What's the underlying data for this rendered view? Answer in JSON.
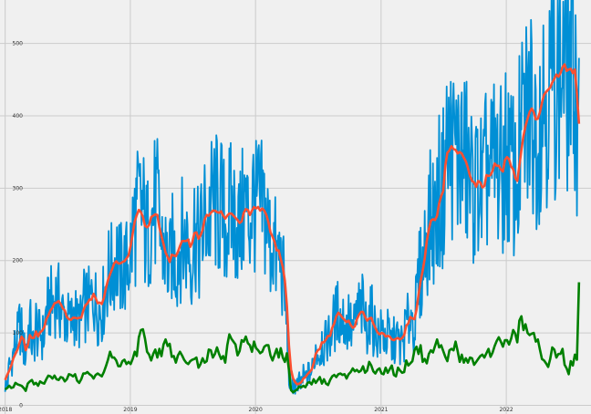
{
  "chart_data": {
    "type": "line",
    "title": "",
    "xlabel": "",
    "ylabel": "",
    "x_ticks": [
      "2018",
      "2019",
      "2020",
      "2021",
      "2022"
    ],
    "y_ticks": [
      "0",
      "100",
      "200",
      "300",
      "400",
      "500"
    ],
    "xlim": [
      "2017-12-17",
      "2022-09-05"
    ],
    "ylim": [
      -12,
      560
    ],
    "grid": true,
    "legend": "none",
    "colors": {
      "background": "#f0f0f0",
      "grid": "#cbcbcb"
    },
    "series": [
      {
        "color": "#008fd5",
        "resolution": "weekly",
        "x_start": "2018-01-01",
        "x_end": "2022-08-01",
        "values": [
          30,
          28,
          55,
          60,
          72,
          86,
          94,
          110,
          101,
          78,
          72,
          98,
          119,
          86,
          78,
          114,
          92,
          105,
          93,
          97,
          135,
          131,
          142,
          138,
          147,
          152,
          144,
          133,
          127,
          124,
          117,
          116,
          113,
          126,
          128,
          112,
          119,
          111,
          141,
          135,
          142,
          138,
          145,
          154,
          141,
          131,
          135,
          132,
          147,
          166,
          183,
          181,
          187,
          197,
          208,
          194,
          185,
          188,
          190,
          190,
          202,
          213,
          236,
          256,
          260,
          271,
          271,
          269,
          243,
          228,
          251,
          259,
          266,
          278,
          269,
          252,
          218,
          222,
          210,
          193,
          186,
          217,
          210,
          197,
          206,
          225,
          231,
          225,
          221,
          236,
          204,
          208,
          246,
          239,
          210,
          232,
          237,
          258,
          262,
          253,
          270,
          282,
          283,
          275,
          263,
          276,
          257,
          249,
          259,
          267,
          266,
          267,
          253,
          254,
          241,
          253,
          275,
          276,
          261,
          253,
          279,
          289,
          267,
          281,
          267,
          271,
          271,
          253,
          242,
          218,
          227,
          222,
          193,
          210,
          197,
          182,
          151,
          112,
          37,
          34,
          32,
          28,
          24,
          29,
          29,
          39,
          36,
          43,
          45,
          46,
          59,
          78,
          75,
          69,
          92,
          78,
          88,
          97,
          90,
          115,
          114,
          124,
          131,
          118,
          121,
          117,
          108,
          121,
          106,
          101,
          110,
          127,
          131,
          132,
          134,
          112,
          111,
          122,
          126,
          109,
          105,
          99,
          94,
          101,
          100,
          90,
          97,
          92,
          83,
          89,
          91,
          91,
          80,
          87,
          92,
          117,
          110,
          133,
          117,
          110,
          140,
          171,
          185,
          186,
          217,
          241,
          251,
          258,
          260,
          252,
          270,
          294,
          279,
          304,
          349,
          354,
          349,
          363,
          346,
          357,
          339,
          352,
          347,
          334,
          337,
          320,
          311,
          301,
          309,
          294,
          323,
          303,
          293,
          300,
          328,
          315,
          317,
          325,
          343,
          324,
          333,
          321,
          316,
          350,
          344,
          336,
          320,
          324,
          300,
          305,
          352,
          368,
          381,
          394,
          400,
          408,
          414,
          399,
          380,
          392,
          407,
          423,
          436,
          434,
          437,
          434,
          451,
          454,
          462,
          448,
          463,
          475,
          471,
          450,
          465,
          468,
          453,
          471,
          385,
          480
        ]
      },
      {
        "color": "#fc4f30",
        "resolution": "weekly",
        "x_start": "2018-01-01",
        "x_end": "2022-08-01",
        "values": [
          35,
          42,
          48,
          55,
          65,
          71,
          77,
          86,
          95,
          91,
          76,
          83,
          97,
          93,
          93,
          102,
          95,
          101,
          103,
          108,
          119,
          124,
          131,
          135,
          141,
          142,
          144,
          140,
          134,
          131,
          122,
          119,
          118,
          121,
          121,
          120,
          121,
          121,
          131,
          138,
          141,
          146,
          146,
          154,
          148,
          141,
          142,
          140,
          148,
          162,
          173,
          181,
          188,
          196,
          199,
          196,
          196,
          198,
          199,
          203,
          207,
          220,
          237,
          254,
          263,
          270,
          267,
          260,
          248,
          246,
          249,
          260,
          262,
          264,
          263,
          246,
          234,
          223,
          211,
          205,
          198,
          208,
          207,
          206,
          212,
          220,
          227,
          227,
          227,
          229,
          219,
          225,
          238,
          239,
          230,
          235,
          242,
          257,
          263,
          262,
          266,
          269,
          269,
          267,
          266,
          268,
          262,
          258,
          262,
          265,
          265,
          262,
          259,
          256,
          252,
          254,
          266,
          271,
          270,
          263,
          269,
          274,
          272,
          274,
          269,
          272,
          269,
          263,
          253,
          239,
          233,
          226,
          214,
          214,
          202,
          191,
          172,
          137,
          82,
          49,
          37,
          32,
          29,
          30,
          32,
          37,
          39,
          43,
          46,
          49,
          58,
          71,
          76,
          78,
          87,
          87,
          91,
          96,
          96,
          107,
          113,
          123,
          128,
          125,
          121,
          118,
          115,
          117,
          111,
          107,
          109,
          119,
          125,
          129,
          129,
          122,
          117,
          120,
          121,
          113,
          107,
          101,
          98,
          100,
          99,
          95,
          96,
          95,
          91,
          90,
          92,
          93,
          91,
          93,
          97,
          110,
          113,
          122,
          120,
          119,
          132,
          153,
          172,
          186,
          203,
          227,
          243,
          255,
          257,
          256,
          262,
          279,
          289,
          296,
          331,
          349,
          352,
          358,
          354,
          353,
          348,
          350,
          348,
          342,
          337,
          328,
          317,
          310,
          308,
          302,
          310,
          308,
          301,
          303,
          318,
          317,
          318,
          324,
          334,
          331,
          331,
          326,
          323,
          339,
          343,
          340,
          330,
          326,
          314,
          310,
          331,
          353,
          372,
          386,
          396,
          405,
          410,
          405,
          395,
          396,
          405,
          418,
          429,
          433,
          436,
          439,
          446,
          451,
          457,
          454,
          459,
          467,
          471,
          462,
          464,
          465,
          459,
          464,
          430,
          389
        ]
      },
      {
        "color": "#008000",
        "resolution": "weekly",
        "x_start": "2018-01-01",
        "x_end": "2022-08-01",
        "values": [
          22,
          24,
          27,
          24,
          25,
          31,
          29,
          28,
          27,
          24,
          20,
          30,
          33,
          35,
          29,
          31,
          27,
          33,
          31,
          30,
          36,
          41,
          40,
          37,
          41,
          36,
          35,
          39,
          38,
          33,
          36,
          43,
          42,
          40,
          43,
          34,
          31,
          36,
          44,
          44,
          46,
          43,
          41,
          37,
          42,
          44,
          42,
          40,
          46,
          54,
          63,
          74,
          66,
          66,
          62,
          54,
          54,
          61,
          63,
          57,
          60,
          57,
          64,
          74,
          68,
          94,
          104,
          105,
          92,
          74,
          70,
          62,
          71,
          77,
          66,
          78,
          68,
          84,
          91,
          82,
          85,
          67,
          68,
          59,
          69,
          74,
          69,
          63,
          59,
          57,
          61,
          63,
          64,
          66,
          52,
          57,
          65,
          59,
          61,
          77,
          76,
          66,
          71,
          80,
          71,
          64,
          68,
          59,
          83,
          98,
          92,
          88,
          84,
          69,
          75,
          90,
          88,
          95,
          86,
          83,
          74,
          88,
          79,
          76,
          72,
          74,
          81,
          83,
          83,
          69,
          62,
          70,
          78,
          66,
          79,
          66,
          60,
          72,
          48,
          21,
          18,
          20,
          22,
          26,
          25,
          27,
          25,
          31,
          32,
          29,
          36,
          31,
          35,
          39,
          30,
          36,
          30,
          28,
          35,
          40,
          42,
          39,
          43,
          44,
          42,
          43,
          37,
          43,
          46,
          51,
          47,
          49,
          46,
          48,
          54,
          45,
          48,
          60,
          55,
          47,
          44,
          49,
          51,
          44,
          43,
          52,
          45,
          50,
          55,
          42,
          40,
          52,
          48,
          45,
          46,
          62,
          55,
          58,
          61,
          76,
          81,
          71,
          83,
          60,
          64,
          58,
          71,
          76,
          73,
          82,
          91,
          80,
          83,
          75,
          67,
          61,
          76,
          78,
          76,
          88,
          75,
          60,
          70,
          59,
          65,
          59,
          66,
          65,
          56,
          60,
          64,
          68,
          70,
          66,
          72,
          78,
          67,
          73,
          82,
          89,
          94,
          88,
          81,
          90,
          90,
          84,
          92,
          104,
          99,
          87,
          117,
          123,
          104,
          112,
          100,
          97,
          99,
          100,
          88,
          91,
          77,
          64,
          62,
          58,
          53,
          64,
          80,
          77,
          66,
          71,
          71,
          78,
          56,
          51,
          43,
          61,
          55,
          70,
          63,
          170
        ]
      }
    ]
  }
}
